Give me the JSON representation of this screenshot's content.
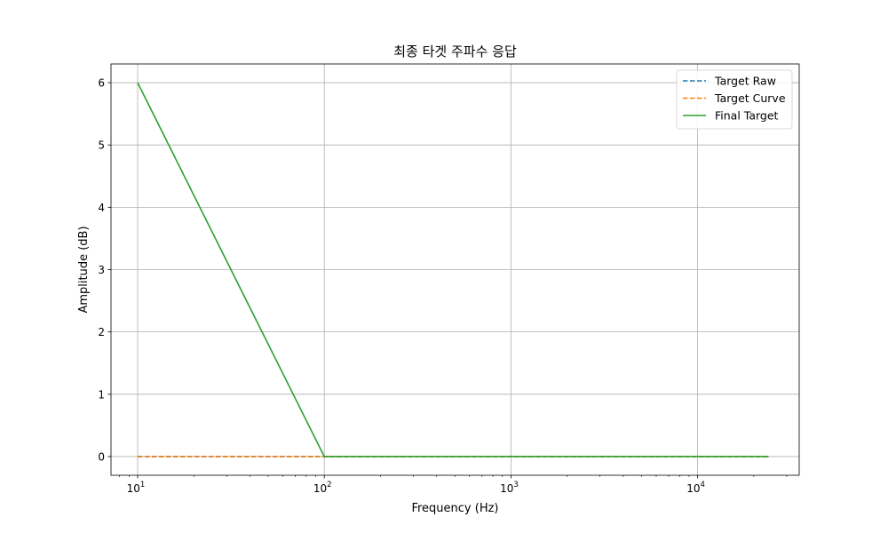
{
  "chart_data": {
    "type": "line",
    "title": "최종 타겟 주파수 응답",
    "xlabel": "Frequency (Hz)",
    "ylabel": "Amplitude (dB)",
    "xscale": "log",
    "xlim": [
      7.2,
      35000
    ],
    "ylim": [
      -0.3,
      6.3
    ],
    "grid": true,
    "legend_position": "top-right",
    "x_ticks": [
      {
        "value": 10,
        "mantissa": "10",
        "exp": "1"
      },
      {
        "value": 100,
        "mantissa": "10",
        "exp": "2"
      },
      {
        "value": 1000,
        "mantissa": "10",
        "exp": "3"
      },
      {
        "value": 10000,
        "mantissa": "10",
        "exp": "4"
      }
    ],
    "y_ticks": [
      0,
      1,
      2,
      3,
      4,
      5,
      6
    ],
    "series": [
      {
        "name": "Target Raw",
        "color": "#1f77b4",
        "dash": "dashed",
        "x": [
          10,
          100,
          24000
        ],
        "y": [
          0,
          0,
          0
        ]
      },
      {
        "name": "Target Curve",
        "color": "#ff7f0e",
        "dash": "dashed",
        "x": [
          10,
          100,
          24000
        ],
        "y": [
          0,
          0,
          0
        ]
      },
      {
        "name": "Final Target",
        "color": "#2ca02c",
        "dash": "solid",
        "x": [
          10,
          100,
          24000
        ],
        "y": [
          6,
          0,
          0
        ]
      }
    ]
  }
}
